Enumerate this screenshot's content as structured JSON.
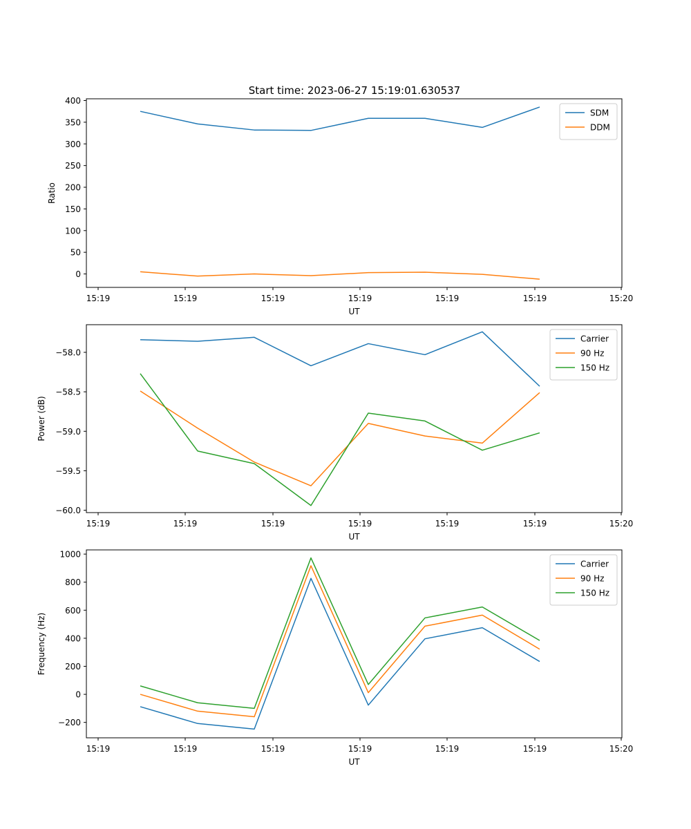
{
  "figure": {
    "title": "Start time: 2023-06-27 15:19:01.630537"
  },
  "chart_data": [
    {
      "type": "line",
      "title": "Start time: 2023-06-27 15:19:01.630537",
      "xlabel": "UT",
      "ylabel": "Ratio",
      "x_ticks": [
        "15:19",
        "15:19",
        "15:19",
        "15:19",
        "15:19",
        "15:19",
        "15:20"
      ],
      "y_ticks": [
        0,
        50,
        100,
        150,
        200,
        250,
        300,
        350,
        400
      ],
      "ylim": [
        -31,
        404
      ],
      "legend_position": "top-right",
      "grid": false,
      "series": [
        {
          "name": "SDM",
          "color": "#1f77b4",
          "values": [
            375,
            346,
            332,
            331,
            359,
            359,
            338,
            385
          ]
        },
        {
          "name": "DDM",
          "color": "#ff7f0e",
          "values": [
            5,
            -5,
            0,
            -4,
            3,
            4,
            -1,
            -12
          ]
        }
      ]
    },
    {
      "type": "line",
      "xlabel": "UT",
      "ylabel": "Power (dB)",
      "x_ticks": [
        "15:19",
        "15:19",
        "15:19",
        "15:19",
        "15:19",
        "15:19",
        "15:20"
      ],
      "y_ticks": [
        -60.0,
        -59.5,
        -59.0,
        -58.5,
        -58.0
      ],
      "y_tick_labels": [
        "−60.0",
        "−59.5",
        "−59.0",
        "−58.5",
        "−58.0"
      ],
      "ylim": [
        -60.03,
        -57.65
      ],
      "legend_position": "top-right",
      "grid": false,
      "series": [
        {
          "name": "Carrier",
          "color": "#1f77b4",
          "values": [
            -57.84,
            -57.86,
            -57.81,
            -58.17,
            -57.89,
            -58.03,
            -57.74,
            -58.43
          ]
        },
        {
          "name": "90 Hz",
          "color": "#ff7f0e",
          "values": [
            -58.49,
            -58.96,
            -59.39,
            -59.69,
            -58.9,
            -59.06,
            -59.15,
            -58.51
          ]
        },
        {
          "name": "150 Hz",
          "color": "#2ca02c",
          "values": [
            -58.27,
            -59.25,
            -59.41,
            -59.94,
            -58.77,
            -58.87,
            -59.24,
            -59.02
          ]
        }
      ]
    },
    {
      "type": "line",
      "xlabel": "UT",
      "ylabel": "Frequency (Hz)",
      "x_ticks": [
        "15:19",
        "15:19",
        "15:19",
        "15:19",
        "15:19",
        "15:19",
        "15:20"
      ],
      "y_ticks": [
        -200,
        0,
        200,
        400,
        600,
        800,
        1000
      ],
      "y_tick_labels": [
        "−200",
        "0",
        "200",
        "400",
        "600",
        "800",
        "1000"
      ],
      "ylim": [
        -310,
        1030
      ],
      "legend_position": "top-right",
      "grid": false,
      "series": [
        {
          "name": "Carrier",
          "color": "#1f77b4",
          "values": [
            -88,
            -208,
            -248,
            827,
            -77,
            396,
            475,
            234
          ]
        },
        {
          "name": "90 Hz",
          "color": "#ff7f0e",
          "values": [
            0,
            -120,
            -160,
            917,
            12,
            486,
            565,
            322
          ]
        },
        {
          "name": "150 Hz",
          "color": "#2ca02c",
          "values": [
            60,
            -60,
            -100,
            973,
            70,
            545,
            623,
            384
          ]
        }
      ]
    }
  ]
}
